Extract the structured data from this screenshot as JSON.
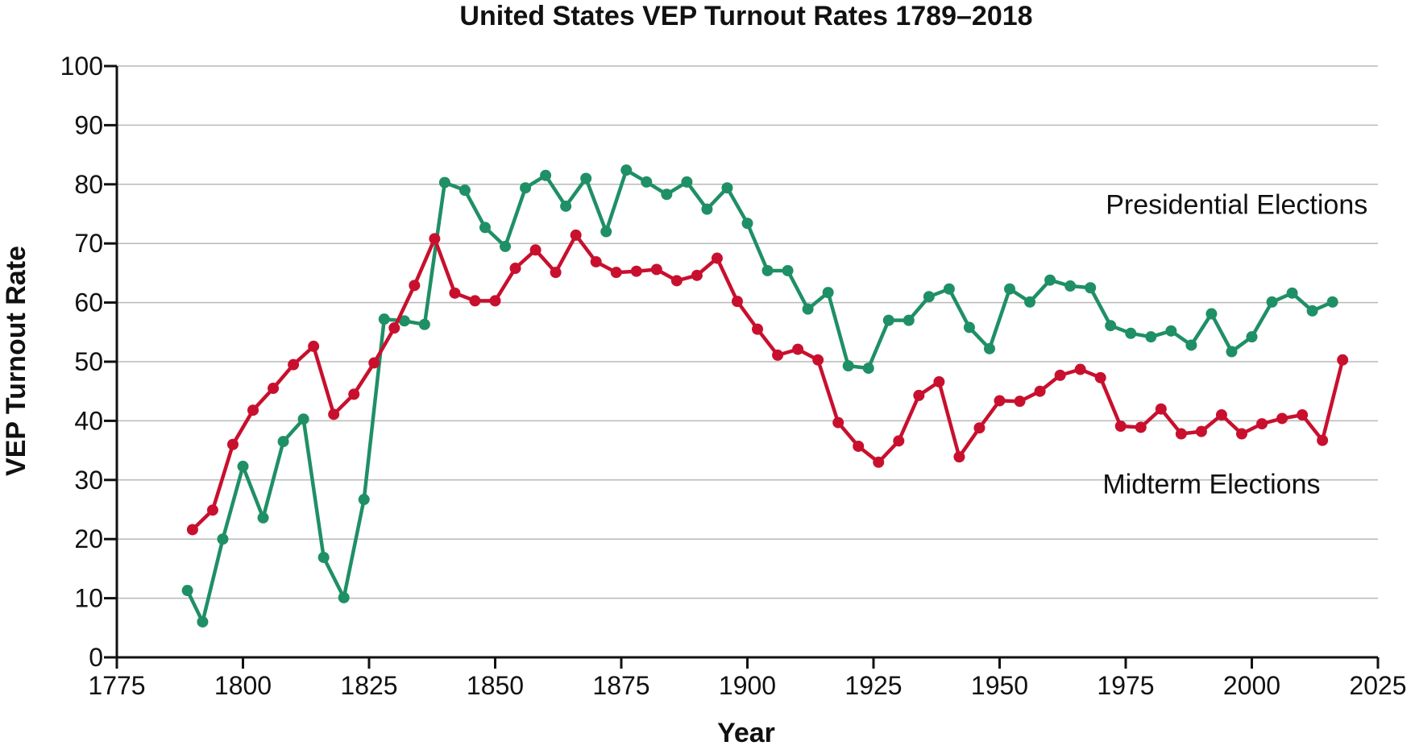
{
  "chart_data": {
    "type": "line",
    "title": "United States VEP Turnout Rates 1789–2018",
    "xlabel": "Year",
    "ylabel": "VEP Turnout Rate",
    "xlim": [
      1775,
      2025
    ],
    "ylim": [
      0,
      100
    ],
    "xticks": [
      1775,
      1800,
      1825,
      1850,
      1875,
      1900,
      1925,
      1950,
      1975,
      2000,
      2025
    ],
    "yticks": [
      0,
      10,
      20,
      30,
      40,
      50,
      60,
      70,
      80,
      90,
      100
    ],
    "grid": "horizontal",
    "series": [
      {
        "name": "Presidential Elections",
        "color": "#1f8f66",
        "x": [
          1789,
          1792,
          1796,
          1800,
          1804,
          1808,
          1812,
          1816,
          1820,
          1824,
          1828,
          1832,
          1836,
          1840,
          1844,
          1848,
          1852,
          1856,
          1860,
          1864,
          1868,
          1872,
          1876,
          1880,
          1884,
          1888,
          1892,
          1896,
          1900,
          1904,
          1908,
          1912,
          1916,
          1920,
          1924,
          1928,
          1932,
          1936,
          1940,
          1944,
          1948,
          1952,
          1956,
          1960,
          1964,
          1968,
          1972,
          1976,
          1980,
          1984,
          1988,
          1992,
          1996,
          2000,
          2004,
          2008,
          2012,
          2016
        ],
        "y": [
          11.3,
          6.0,
          20.0,
          32.3,
          23.6,
          36.5,
          40.3,
          16.9,
          10.1,
          26.7,
          57.2,
          56.9,
          56.3,
          80.3,
          79.0,
          72.7,
          69.5,
          79.4,
          81.5,
          76.3,
          81.0,
          72.0,
          82.4,
          80.4,
          78.3,
          80.4,
          75.8,
          79.4,
          73.4,
          65.4,
          65.4,
          58.9,
          61.7,
          49.3,
          48.9,
          57.0,
          57.0,
          61.0,
          62.3,
          55.8,
          52.2,
          62.3,
          60.1,
          63.8,
          62.8,
          62.5,
          56.1,
          54.8,
          54.2,
          55.2,
          52.8,
          58.1,
          51.7,
          54.2,
          60.1,
          61.6,
          58.6,
          60.1
        ]
      },
      {
        "name": "Midterm Elections",
        "color": "#c8102e",
        "x": [
          1790,
          1794,
          1798,
          1802,
          1806,
          1810,
          1814,
          1818,
          1822,
          1826,
          1830,
          1834,
          1838,
          1842,
          1846,
          1850,
          1854,
          1858,
          1862,
          1866,
          1870,
          1874,
          1878,
          1882,
          1886,
          1890,
          1894,
          1898,
          1902,
          1906,
          1910,
          1914,
          1918,
          1922,
          1926,
          1930,
          1934,
          1938,
          1942,
          1946,
          1950,
          1954,
          1958,
          1962,
          1966,
          1970,
          1974,
          1978,
          1982,
          1986,
          1990,
          1994,
          1998,
          2002,
          2006,
          2010,
          2014,
          2018
        ],
        "y": [
          21.6,
          24.9,
          36.0,
          41.8,
          45.5,
          49.5,
          52.6,
          41.1,
          44.5,
          49.8,
          55.7,
          62.9,
          70.8,
          61.6,
          60.3,
          60.3,
          65.8,
          68.9,
          65.1,
          71.4,
          66.9,
          65.1,
          65.3,
          65.6,
          63.7,
          64.6,
          67.5,
          60.2,
          55.5,
          51.1,
          52.1,
          50.3,
          39.7,
          35.7,
          33.0,
          36.6,
          44.3,
          46.6,
          33.9,
          38.8,
          43.4,
          43.3,
          45.0,
          47.7,
          48.7,
          47.3,
          39.1,
          38.9,
          42.0,
          37.8,
          38.2,
          41.0,
          37.8,
          39.5,
          40.4,
          41.0,
          36.7,
          50.3
        ]
      }
    ],
    "annotations": [
      {
        "text": "Presidential Elections",
        "series": 0,
        "x": 1997,
        "y": 75.0
      },
      {
        "text": "Midterm Elections",
        "series": 1,
        "x": 1992,
        "y": 27.7
      }
    ]
  }
}
